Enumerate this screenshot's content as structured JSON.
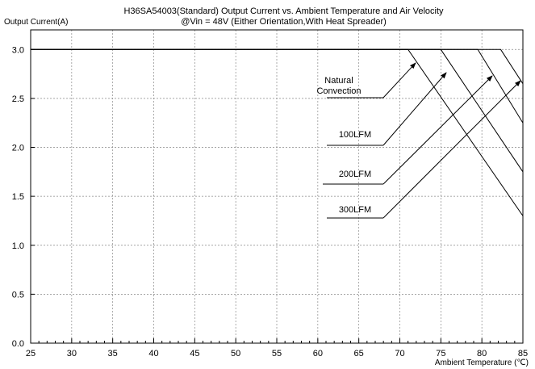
{
  "chart_data": {
    "type": "line",
    "title": "H36SA54003(Standard)  Output Current vs. Ambient Temperature and Air Velocity",
    "subtitle": "@Vin = 48V (Either Orientation,With Heat Spreader)",
    "ylabel": "Output Current(A)",
    "xlabel": "Ambient Temperature (℃)",
    "xlim": [
      25,
      85
    ],
    "ylim": [
      0,
      3.2
    ],
    "x_ticks": [
      "25",
      "30",
      "35",
      "40",
      "45",
      "50",
      "55",
      "60",
      "65",
      "70",
      "75",
      "80",
      "85"
    ],
    "y_ticks": [
      "0.0",
      "0.5",
      "1.0",
      "1.5",
      "2.0",
      "2.5",
      "3.0"
    ],
    "grid": true,
    "series": [
      {
        "name": "Natural Convection",
        "x": [
          25,
          71,
          85
        ],
        "y": [
          3.0,
          3.0,
          1.3
        ]
      },
      {
        "name": "100LFM",
        "x": [
          25,
          75,
          85
        ],
        "y": [
          3.0,
          3.0,
          1.75
        ]
      },
      {
        "name": "200LFM",
        "x": [
          25,
          79.5,
          85
        ],
        "y": [
          3.0,
          3.0,
          2.25
        ]
      },
      {
        "name": "300LFM",
        "x": [
          25,
          82.3,
          85
        ],
        "y": [
          3.0,
          3.0,
          2.65
        ]
      }
    ],
    "annotations": [
      {
        "text": "Natural",
        "line2": "Convection"
      },
      {
        "text": "100LFM"
      },
      {
        "text": "200LFM"
      },
      {
        "text": "300LFM"
      }
    ]
  }
}
